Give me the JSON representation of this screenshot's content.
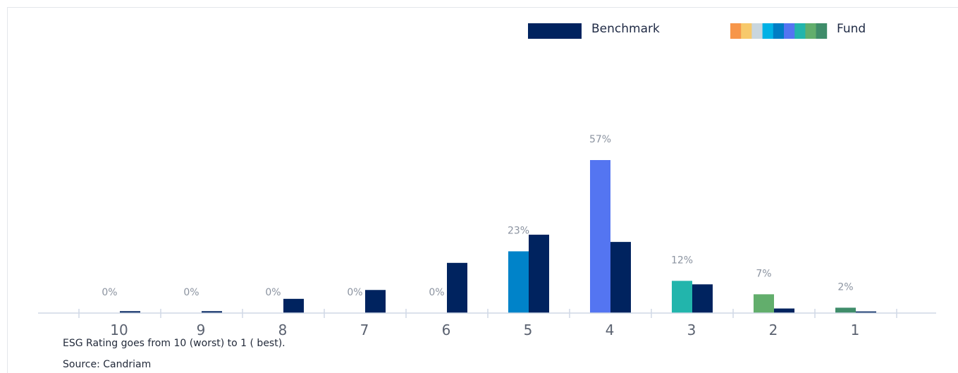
{
  "chart_data": {
    "type": "bar",
    "categories": [
      "10",
      "9",
      "8",
      "7",
      "6",
      "5",
      "4",
      "3",
      "2",
      "1"
    ],
    "series": [
      {
        "name": "Fund",
        "values": [
          0,
          0,
          0,
          0,
          0,
          23,
          57,
          12,
          7,
          2
        ],
        "labels": [
          "0%",
          "0%",
          "0%",
          "0%",
          "0%",
          "23%",
          "57%",
          "12%",
          "7%",
          "2%"
        ],
        "colors": [
          "#F7964A",
          "#F7C96B",
          "#C9D6DE",
          "#00B1E5",
          "#007DC4",
          "#0083C9",
          "#5475F1",
          "#22B5AC",
          "#62AE6C",
          "#3F8D6A"
        ]
      },
      {
        "name": "Benchmark",
        "values": [
          0.7,
          0.7,
          5.3,
          8.6,
          18.7,
          29.2,
          26.5,
          10.7,
          1.7,
          0.6
        ],
        "color": "#00235F"
      }
    ],
    "legend_position": "top-right",
    "legend_swatch_colors": [
      "#F7964A",
      "#F7C96B",
      "#C9D6DE",
      "#00B1E5",
      "#007DC4",
      "#5475F1",
      "#22B5AC",
      "#62AE6C",
      "#3F8D6A"
    ],
    "ylim": [
      0,
      60
    ],
    "grid": false
  },
  "footnotes": {
    "rating_note": "ESG Rating goes from 10 (worst) to 1 ( best).",
    "source": "Source: Candriam"
  }
}
